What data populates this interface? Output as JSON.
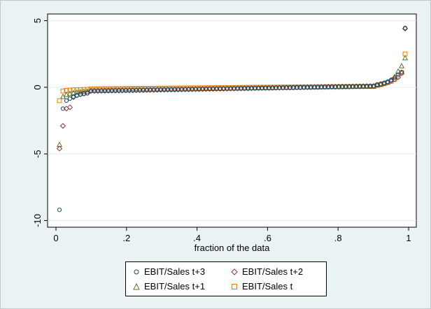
{
  "chart_data": {
    "type": "scatter",
    "title": "",
    "xlabel": "fraction of the data",
    "ylabel": "",
    "xlim": [
      0,
      1
    ],
    "ylim": [
      -10.5,
      5.5
    ],
    "x_ticks": [
      {
        "value": 0,
        "label": "0"
      },
      {
        "value": 0.2,
        "label": ".2"
      },
      {
        "value": 0.4,
        "label": ".4"
      },
      {
        "value": 0.6,
        "label": ".6"
      },
      {
        "value": 0.8,
        "label": ".8"
      },
      {
        "value": 1,
        "label": "1"
      }
    ],
    "y_ticks": [
      {
        "value": 5,
        "label": "5"
      },
      {
        "value": 0,
        "label": "0"
      },
      {
        "value": -5,
        "label": "-5"
      },
      {
        "value": -10,
        "label": "-10"
      }
    ],
    "grid": "horizontal lines at y ticks",
    "legend_position": "bottom",
    "series": [
      {
        "name": "EBIT/Sales t+3",
        "marker": "circle",
        "color": "#1a476f",
        "lows": [
          -9.2,
          -1.6,
          -1.0,
          -0.85,
          -0.7,
          -0.62,
          -0.55,
          -0.5,
          -0.45
        ],
        "highs": [
          0.2,
          0.26,
          0.33,
          0.42,
          0.55,
          0.72,
          0.95,
          1.15,
          4.45
        ],
        "mid": [
          -0.3,
          0.1
        ]
      },
      {
        "name": "EBIT/Sales t+2",
        "marker": "diamond",
        "color": "#90353b",
        "lows": [
          -4.6,
          -2.9,
          -1.6,
          -1.5,
          -0.75,
          -0.6,
          -0.52,
          -0.47,
          -0.43
        ],
        "highs": [
          0.18,
          0.24,
          0.3,
          0.38,
          0.48,
          0.6,
          0.75,
          1.05,
          4.4
        ],
        "mid": [
          -0.28,
          0.09
        ]
      },
      {
        "name": "EBIT/Sales t+1",
        "marker": "triangle",
        "color": "#55752f",
        "lows": [
          -4.3,
          -0.7,
          -0.55,
          -0.48,
          -0.42,
          -0.38,
          -0.35,
          -0.32,
          -0.3
        ],
        "highs": [
          0.16,
          0.22,
          0.3,
          0.4,
          0.55,
          0.8,
          1.2,
          1.6,
          2.2
        ],
        "mid": [
          -0.22,
          0.08
        ]
      },
      {
        "name": "EBIT/Sales t",
        "marker": "square",
        "color": "#e37e00",
        "lows": [
          -1.0,
          -0.28,
          -0.24,
          -0.22,
          -0.2,
          -0.19,
          -0.18,
          -0.17,
          -0.16
        ],
        "highs": [
          0.15,
          0.2,
          0.27,
          0.35,
          0.45,
          0.6,
          0.85,
          1.1,
          2.5
        ],
        "mid": [
          -0.12,
          0.07
        ]
      }
    ],
    "point_count_per_series": 100
  },
  "legend": {
    "items": [
      {
        "label": "EBIT/Sales t+3",
        "marker": "circle",
        "color": "#1a476f"
      },
      {
        "label": "EBIT/Sales t+2",
        "marker": "diamond",
        "color": "#90353b"
      },
      {
        "label": "EBIT/Sales t+1",
        "marker": "triangle",
        "color": "#55752f"
      },
      {
        "label": "EBIT/Sales t",
        "marker": "square",
        "color": "#e37e00"
      }
    ]
  }
}
